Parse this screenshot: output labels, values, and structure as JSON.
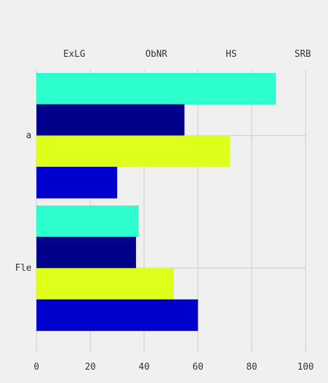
{
  "chart_data": {
    "type": "bar",
    "orientation": "horizontal",
    "title": "",
    "xlabel": "",
    "ylabel": "",
    "categories": [
      "a",
      "Fle"
    ],
    "series": [
      {
        "name": "ExLG",
        "values": [
          89,
          38
        ]
      },
      {
        "name": "ObNR",
        "values": [
          55,
          37
        ]
      },
      {
        "name": "HS",
        "values": [
          72,
          51
        ]
      },
      {
        "name": "SRB",
        "values": [
          30,
          60
        ]
      }
    ],
    "xlim": [
      0,
      100
    ],
    "xticks": [
      "0",
      "20",
      "40",
      "60",
      "80",
      "100"
    ],
    "grid": true,
    "legend_position": "top"
  },
  "colors": {
    "background": "#f0f0f0",
    "grid": "#cbcbcb",
    "series": [
      "#2cffcd",
      "#00008b",
      "#ddff19",
      "#0000cd"
    ]
  }
}
